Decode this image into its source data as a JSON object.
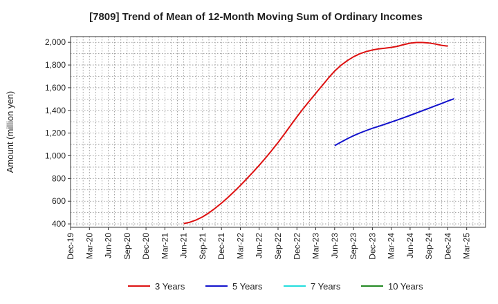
{
  "chart_data": {
    "type": "line",
    "title": "[7809]  Trend of Mean of 12-Month Moving Sum of Ordinary Incomes",
    "xlabel": "",
    "ylabel": "Amount (million yen)",
    "ylim": [
      370,
      2050
    ],
    "yticks": [
      400,
      600,
      800,
      1000,
      1200,
      1400,
      1600,
      1800,
      2000
    ],
    "ytick_labels": [
      "400",
      "600",
      "800",
      "1,000",
      "1,200",
      "1,400",
      "1,600",
      "1,800",
      "2,000"
    ],
    "x_range_months": [
      0,
      66
    ],
    "x_tick_labels": [
      "Dec-19",
      "Mar-20",
      "Jun-20",
      "Sep-20",
      "Dec-20",
      "Mar-21",
      "Jun-21",
      "Sep-21",
      "Dec-21",
      "Mar-22",
      "Jun-22",
      "Sep-22",
      "Dec-22",
      "Mar-23",
      "Jun-23",
      "Sep-23",
      "Dec-23",
      "Mar-24",
      "Jun-24",
      "Sep-24",
      "Dec-24",
      "Mar-25"
    ],
    "x_tick_months": [
      0,
      3,
      6,
      9,
      12,
      15,
      18,
      21,
      24,
      27,
      30,
      33,
      36,
      39,
      42,
      45,
      48,
      51,
      54,
      57,
      60,
      63
    ],
    "grid": true,
    "legend_position": "bottom",
    "series": [
      {
        "name": "3 Years",
        "color": "#dd1111",
        "points": [
          [
            18,
            403
          ],
          [
            19,
            415
          ],
          [
            20,
            435
          ],
          [
            21,
            462
          ],
          [
            22,
            497
          ],
          [
            23,
            538
          ],
          [
            24,
            583
          ],
          [
            25,
            632
          ],
          [
            26,
            684
          ],
          [
            27,
            739
          ],
          [
            28,
            796
          ],
          [
            29,
            855
          ],
          [
            30,
            916
          ],
          [
            31,
            980
          ],
          [
            32,
            1047
          ],
          [
            33,
            1117
          ],
          [
            34,
            1191
          ],
          [
            35,
            1268
          ],
          [
            36,
            1343
          ],
          [
            37,
            1416
          ],
          [
            38,
            1484
          ],
          [
            39,
            1550
          ],
          [
            40,
            1617
          ],
          [
            41,
            1684
          ],
          [
            42,
            1746
          ],
          [
            43,
            1797
          ],
          [
            44,
            1838
          ],
          [
            45,
            1872
          ],
          [
            46,
            1899
          ],
          [
            47,
            1918
          ],
          [
            48,
            1932
          ],
          [
            49,
            1942
          ],
          [
            50,
            1948
          ],
          [
            51,
            1955
          ],
          [
            52,
            1965
          ],
          [
            53,
            1980
          ],
          [
            54,
            1992
          ],
          [
            55,
            1998
          ],
          [
            56,
            1998
          ],
          [
            57,
            1994
          ],
          [
            58,
            1985
          ],
          [
            59,
            1973
          ],
          [
            60,
            1966
          ]
        ]
      },
      {
        "name": "5 Years",
        "color": "#1111cc",
        "points": [
          [
            42,
            1090
          ],
          [
            43,
            1120
          ],
          [
            44,
            1150
          ],
          [
            45,
            1177
          ],
          [
            46,
            1201
          ],
          [
            47,
            1222
          ],
          [
            48,
            1242
          ],
          [
            49,
            1260
          ],
          [
            50,
            1278
          ],
          [
            51,
            1297
          ],
          [
            52,
            1316
          ],
          [
            53,
            1336
          ],
          [
            54,
            1356
          ],
          [
            55,
            1377
          ],
          [
            56,
            1398
          ],
          [
            57,
            1419
          ],
          [
            58,
            1440
          ],
          [
            59,
            1461
          ],
          [
            60,
            1483
          ],
          [
            61,
            1503
          ]
        ]
      },
      {
        "name": "7 Years",
        "color": "#22dddd",
        "points": []
      },
      {
        "name": "10 Years",
        "color": "#228822",
        "points": []
      }
    ]
  }
}
